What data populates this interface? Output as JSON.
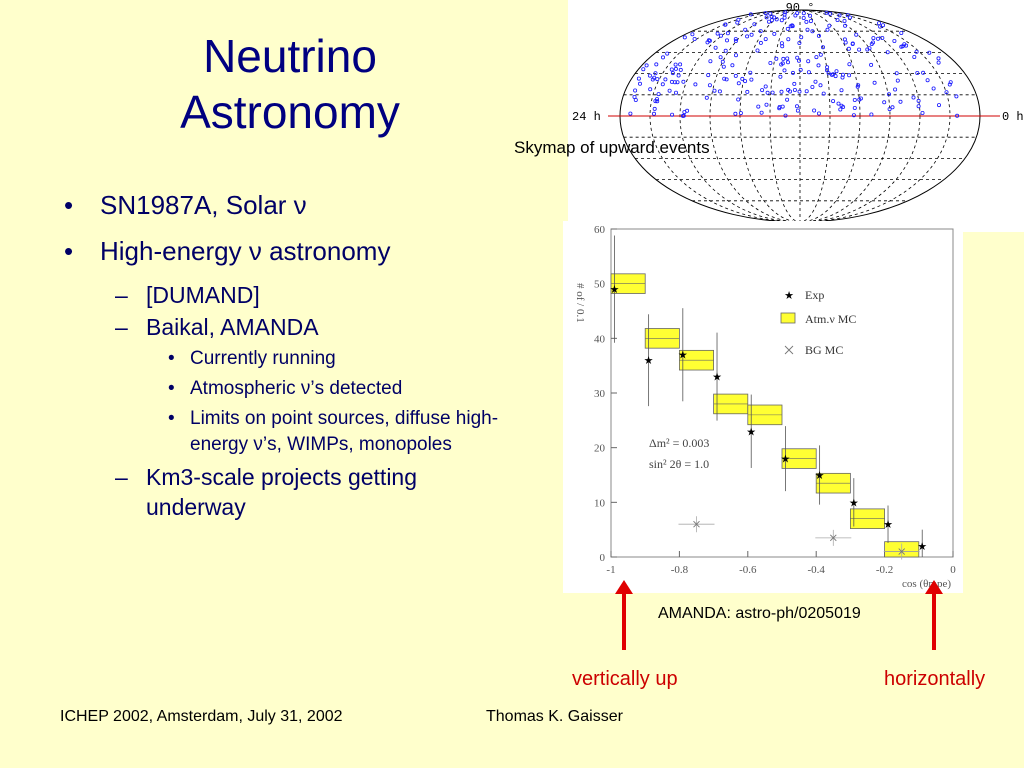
{
  "slide": {
    "title": "Neutrino Astronomy",
    "bullets": [
      {
        "text": "SN1987A, Solar ν"
      },
      {
        "text": "High-energy ν astronomy",
        "sub": [
          "[DUMAND]",
          "Baikal, AMANDA",
          "Currently running",
          "Atmospheric ν’s detected",
          "Limits on point sources, diffuse high-energy ν’s, WIMPs, monopoles",
          "Km3-scale projects getting underway"
        ]
      }
    ]
  },
  "skymap": {
    "caption": "Skymap of upward events",
    "top_label": "90 °",
    "left_label": "24 h",
    "right_label": "0 h"
  },
  "chart_data": {
    "type": "scatter",
    "xlabel": "cos (θmpe)",
    "ylabel": "# of / 0.1",
    "xlim": [
      -1,
      0
    ],
    "ylim": [
      0,
      60
    ],
    "x_ticks": [
      "-1",
      "-0.8",
      "-0.6",
      "-0.4",
      "-0.2",
      "0"
    ],
    "y_ticks": [
      "0",
      "10",
      "20",
      "30",
      "40",
      "50",
      "60"
    ],
    "legend": [
      "Exp",
      "Atm.ν MC",
      "BG MC"
    ],
    "annotation_1": "Δm² = 0.003",
    "annotation_2": "sin² 2θ = 1.0",
    "series": [
      {
        "name": "Exp",
        "x": [
          -0.99,
          -0.89,
          -0.79,
          -0.69,
          -0.59,
          -0.49,
          -0.39,
          -0.29,
          -0.19,
          -0.09
        ],
        "y": [
          49,
          36,
          37,
          33,
          23,
          18,
          15,
          10,
          6,
          2
        ]
      },
      {
        "name": "Atm.ν MC",
        "x": [
          -0.95,
          -0.85,
          -0.75,
          -0.65,
          -0.55,
          -0.45,
          -0.35,
          -0.25,
          -0.15
        ],
        "y": [
          50,
          40,
          36,
          28,
          26,
          18,
          13.5,
          7,
          1
        ]
      },
      {
        "name": "BG MC",
        "x": [
          -0.75,
          -0.35,
          -0.15
        ],
        "y": [
          6,
          3.5,
          1
        ]
      }
    ]
  },
  "reference": "AMANDA: astro-ph/0205019",
  "arrow_left_label": "vertically up",
  "arrow_right_label": "horizontally",
  "footer": {
    "left": "ICHEP 2002, Amsterdam, July 31, 2002",
    "center": "Thomas K. Gaisser"
  }
}
